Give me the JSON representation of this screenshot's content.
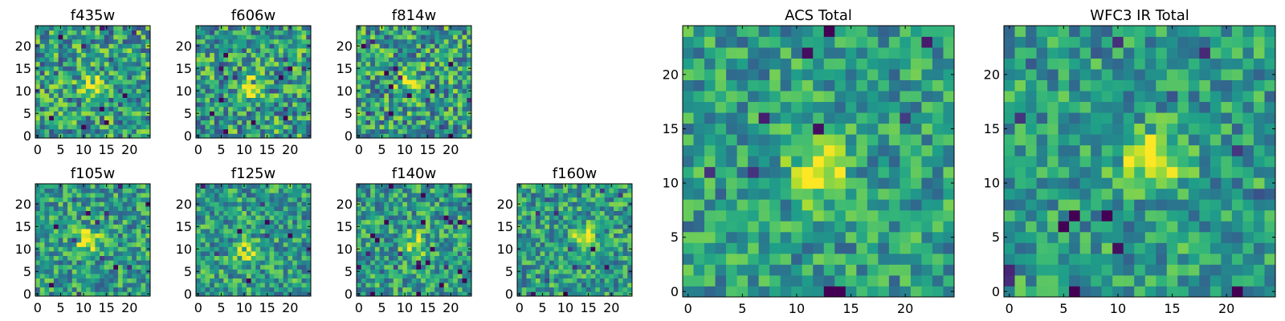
{
  "colormap": {
    "name": "viridis",
    "stops": [
      "#440154",
      "#482878",
      "#3e4989",
      "#31688e",
      "#26828e",
      "#1f9e89",
      "#35b779",
      "#6ece58",
      "#b5de2b",
      "#fde725"
    ]
  },
  "chart_data": [
    {
      "type": "heatmap",
      "title": "f435w",
      "xticks": [
        0,
        5,
        10,
        15,
        20
      ],
      "yticks": [
        0,
        5,
        10,
        15,
        20
      ],
      "grid_size": 25,
      "xlim": [
        0,
        25
      ],
      "ylim": [
        0,
        25
      ],
      "peak": [
        12,
        11
      ],
      "peak_strength": 0.35,
      "noise": 0.55,
      "seed": 11
    },
    {
      "type": "heatmap",
      "title": "f606w",
      "xticks": [
        0,
        5,
        10,
        15,
        20
      ],
      "yticks": [
        0,
        5,
        10,
        15,
        20
      ],
      "grid_size": 25,
      "xlim": [
        0,
        25
      ],
      "ylim": [
        0,
        25
      ],
      "peak": [
        11,
        11
      ],
      "peak_strength": 0.45,
      "noise": 0.55,
      "seed": 23
    },
    {
      "type": "heatmap",
      "title": "f814w",
      "xticks": [
        0,
        5,
        10,
        15,
        20
      ],
      "yticks": [
        0,
        5,
        10,
        15,
        20
      ],
      "grid_size": 25,
      "xlim": [
        0,
        25
      ],
      "ylim": [
        0,
        25
      ],
      "peak": [
        11,
        12
      ],
      "peak_strength": 0.4,
      "noise": 0.55,
      "seed": 37
    },
    {
      "type": "heatmap",
      "title": "f105w",
      "xticks": [
        0,
        5,
        10,
        15,
        20
      ],
      "yticks": [
        0,
        5,
        10,
        15,
        20
      ],
      "grid_size": 25,
      "xlim": [
        0,
        25
      ],
      "ylim": [
        0,
        25
      ],
      "peak": [
        11,
        12
      ],
      "peak_strength": 0.45,
      "noise": 0.45,
      "seed": 41
    },
    {
      "type": "heatmap",
      "title": "f125w",
      "xticks": [
        0,
        5,
        10,
        15,
        20
      ],
      "yticks": [
        0,
        5,
        10,
        15,
        20
      ],
      "grid_size": 25,
      "xlim": [
        0,
        25
      ],
      "ylim": [
        0,
        25
      ],
      "peak": [
        11,
        9
      ],
      "peak_strength": 0.4,
      "noise": 0.45,
      "seed": 53
    },
    {
      "type": "heatmap",
      "title": "f140w",
      "xticks": [
        0,
        5,
        10,
        15,
        20
      ],
      "yticks": [
        0,
        5,
        10,
        15,
        20
      ],
      "grid_size": 25,
      "xlim": [
        0,
        25
      ],
      "ylim": [
        0,
        25
      ],
      "peak": [
        12,
        11
      ],
      "peak_strength": 0.35,
      "noise": 0.45,
      "seed": 67
    },
    {
      "type": "heatmap",
      "title": "f160w",
      "xticks": [
        0,
        5,
        10,
        15,
        20
      ],
      "yticks": [
        0,
        5,
        10,
        15,
        20
      ],
      "grid_size": 25,
      "xlim": [
        0,
        25
      ],
      "ylim": [
        0,
        25
      ],
      "peak": [
        14,
        13
      ],
      "peak_strength": 0.4,
      "noise": 0.45,
      "seed": 79
    },
    {
      "type": "heatmap",
      "title": "ACS Total",
      "xticks": [
        0,
        5,
        10,
        15,
        20
      ],
      "yticks": [
        0,
        5,
        10,
        15,
        20
      ],
      "grid_size": 25,
      "xlim": [
        0,
        25
      ],
      "ylim": [
        0,
        25
      ],
      "peak": [
        12,
        11
      ],
      "peak_strength": 0.55,
      "noise": 0.4,
      "seed": 97
    },
    {
      "type": "heatmap",
      "title": "WFC3 IR Total",
      "xticks": [
        0,
        5,
        10,
        15,
        20
      ],
      "yticks": [
        0,
        5,
        10,
        15,
        20
      ],
      "grid_size": 25,
      "xlim": [
        0,
        25
      ],
      "ylim": [
        0,
        25
      ],
      "peak": [
        13,
        12
      ],
      "peak_strength": 0.5,
      "noise": 0.4,
      "seed": 101
    }
  ]
}
